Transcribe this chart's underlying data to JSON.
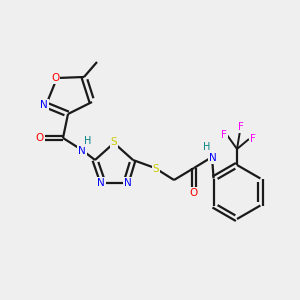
{
  "background_color": "#efefef",
  "bond_color": "#1a1a1a",
  "colors": {
    "N": "#0000ff",
    "O": "#ff0000",
    "S": "#cccc00",
    "F": "#ff00ff",
    "C": "#1a1a1a",
    "H_label": "#008080"
  },
  "figsize": [
    3.0,
    3.0
  ],
  "dpi": 100
}
